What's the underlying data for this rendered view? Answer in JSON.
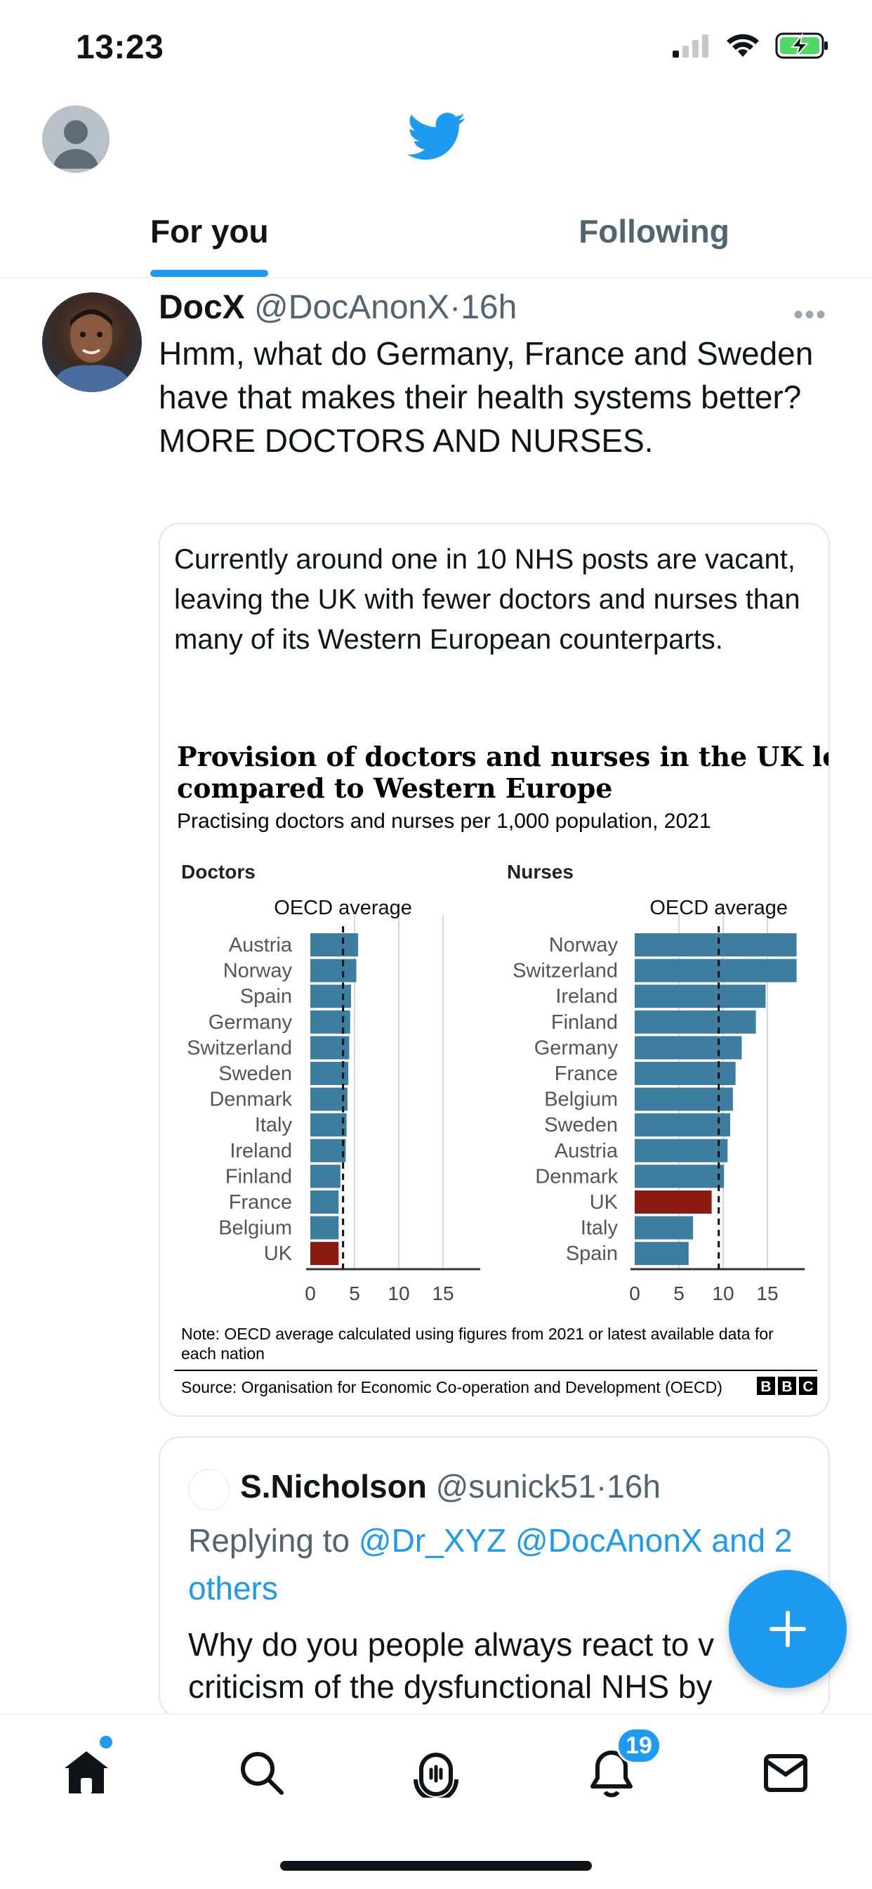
{
  "status_bar": {
    "time": "13:23"
  },
  "tabs": [
    {
      "label": "For you",
      "active": true
    },
    {
      "label": "Following",
      "active": false
    }
  ],
  "tweet": {
    "name": "DocX",
    "handle": "@DocAnonX",
    "time": "16h",
    "text": "Hmm, what do Germany, France and Sweden have that makes their health systems better? MORE DOCTORS AND NURSES."
  },
  "card": {
    "text": "Currently around one in 10 NHS posts are vacant, leaving the UK with fewer doctors and nurses than many of its Western European counterparts."
  },
  "chart_data": {
    "type": "bar",
    "title": "Provision of doctors and nurses in the UK low compared to Western Europe",
    "subtitle": "Practising doctors and nurses per 1,000 population, 2021",
    "reference_line_label": "OECD average",
    "note": "Note: OECD average calculated using figures from 2021 or latest available data for each nation",
    "source": "Source: Organisation for Economic Co-operation and Development (OECD)",
    "brand": "BBC",
    "colors": {
      "bar": "#3d7ea0",
      "highlight": "#8b1a13"
    },
    "panels": [
      {
        "name": "Doctors",
        "categories": [
          "Austria",
          "Norway",
          "Spain",
          "Germany",
          "Switzerland",
          "Sweden",
          "Denmark",
          "Italy",
          "Ireland",
          "Finland",
          "France",
          "Belgium",
          "UK"
        ],
        "values": [
          5.4,
          5.2,
          4.6,
          4.5,
          4.4,
          4.3,
          4.2,
          4.1,
          4.0,
          3.4,
          3.2,
          3.2,
          3.2
        ],
        "highlight": "UK",
        "oecd_average": 3.7,
        "xlim": [
          0,
          19
        ],
        "ticks": [
          0,
          5,
          10,
          15
        ]
      },
      {
        "name": "Nurses",
        "categories": [
          "Norway",
          "Switzerland",
          "Ireland",
          "Finland",
          "Germany",
          "France",
          "Belgium",
          "Sweden",
          "Austria",
          "Denmark",
          "UK",
          "Italy",
          "Spain"
        ],
        "values": [
          18.3,
          18.3,
          14.8,
          13.7,
          12.1,
          11.4,
          11.1,
          10.8,
          10.5,
          10.1,
          8.7,
          6.6,
          6.1
        ],
        "highlight": "UK",
        "oecd_average": 9.5,
        "xlim": [
          0,
          19
        ],
        "ticks": [
          0,
          5,
          10,
          15
        ]
      }
    ]
  },
  "quote": {
    "name": "S.Nicholson",
    "handle": "@sunick51",
    "time": "16h",
    "replying_prefix": "Replying to ",
    "replying_to": "@Dr_XYZ @DocAnonX and 2 others",
    "text": "Why do you people always react to v criticism of the dysfunctional NHS by"
  },
  "bottom_nav": {
    "notifications_count": "19"
  }
}
